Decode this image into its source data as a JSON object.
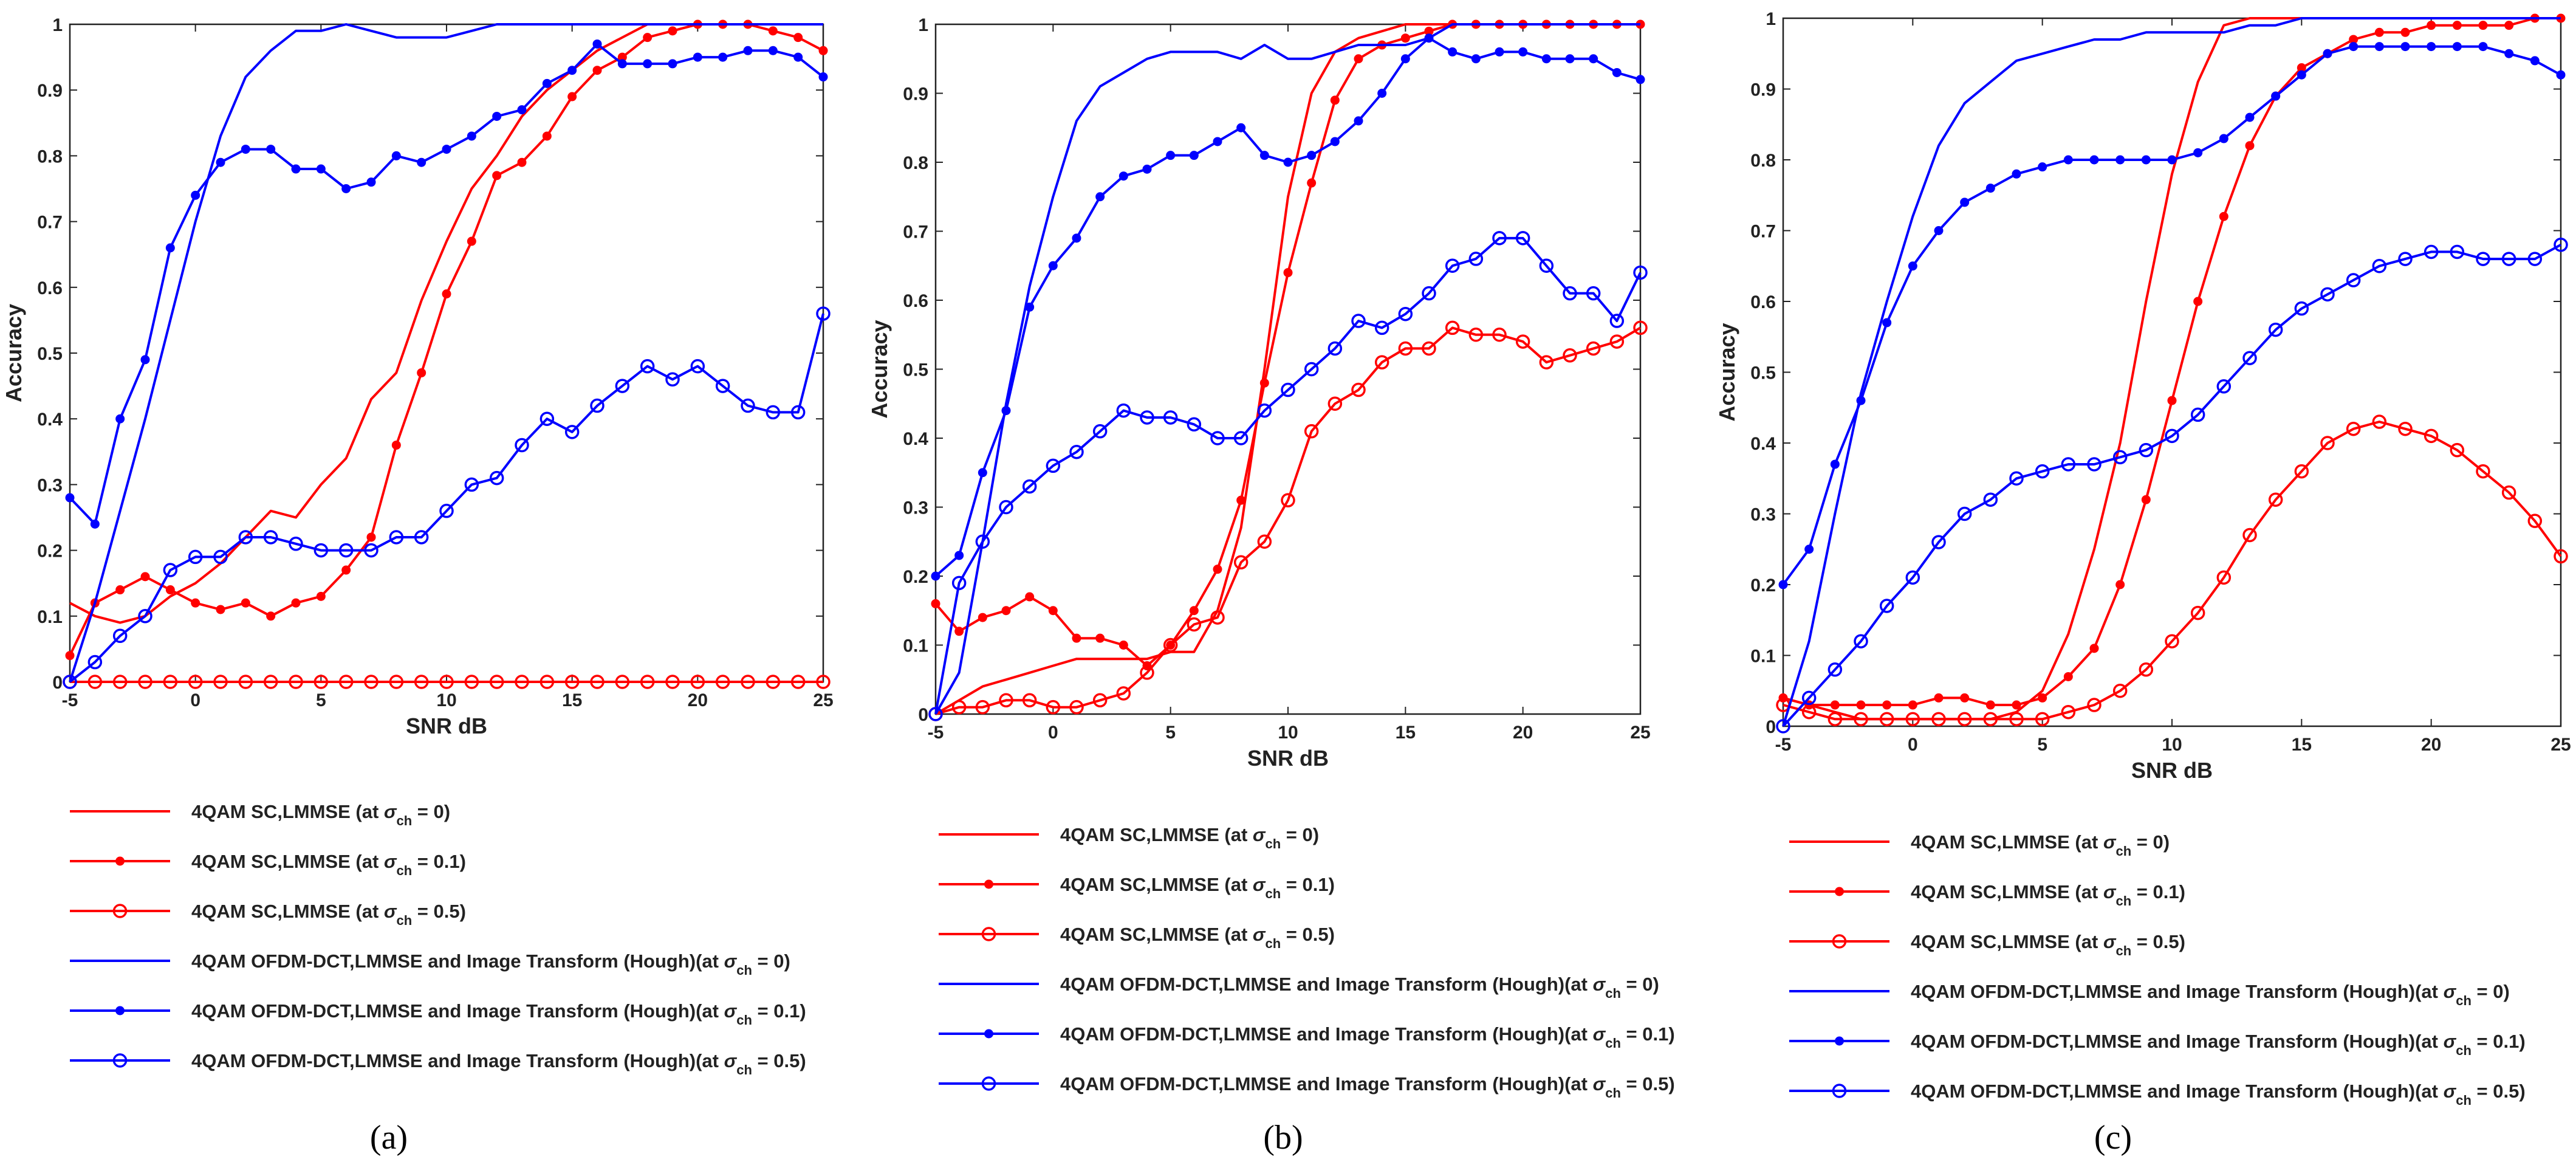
{
  "figure": {
    "captions": [
      "(a)",
      "(b)",
      "(c)"
    ],
    "colors": {
      "sc": "#ff0000",
      "ofdm": "#0000ff",
      "axis": "#222222"
    }
  },
  "chart_data": [
    {
      "type": "line",
      "panel": "a",
      "caption_letter": "a",
      "xlabel": "SNR dB",
      "ylabel": "Accuracy",
      "xlim": [
        -5,
        25
      ],
      "ylim": [
        0,
        1
      ],
      "xticks": [
        -5,
        0,
        5,
        10,
        15,
        20,
        25
      ],
      "yticks": [
        0,
        0.1,
        0.2,
        0.3,
        0.4,
        0.5,
        0.6,
        0.7,
        0.8,
        0.9,
        1
      ],
      "x": [
        -5,
        -4,
        -3,
        -2,
        -1,
        0,
        1,
        2,
        3,
        4,
        5,
        6,
        7,
        8,
        9,
        10,
        11,
        12,
        13,
        14,
        15,
        16,
        17,
        18,
        19,
        20,
        21,
        22,
        23,
        24,
        25
      ],
      "series": [
        {
          "name": "4QAM SC,LMMSE (at σch = 0)",
          "legend_prefix": "4QAM SC,LMMSE (at ",
          "legend_suffix": "= 0)",
          "color": "#ff0000",
          "marker": "none",
          "values": [
            0.12,
            0.1,
            0.09,
            0.1,
            0.13,
            0.15,
            0.18,
            0.22,
            0.26,
            0.25,
            0.3,
            0.34,
            0.43,
            0.47,
            0.58,
            0.67,
            0.75,
            0.8,
            0.86,
            0.9,
            0.93,
            0.96,
            0.98,
            1,
            1,
            1,
            1,
            1,
            1,
            1,
            1
          ]
        },
        {
          "name": "4QAM SC,LMMSE (at σch = 0.1)",
          "legend_prefix": "4QAM SC,LMMSE (at ",
          "legend_suffix": "= 0.1)",
          "color": "#ff0000",
          "marker": "dot",
          "values": [
            0.04,
            0.12,
            0.14,
            0.16,
            0.14,
            0.12,
            0.11,
            0.12,
            0.1,
            0.12,
            0.13,
            0.17,
            0.22,
            0.36,
            0.47,
            0.59,
            0.67,
            0.77,
            0.79,
            0.83,
            0.89,
            0.93,
            0.95,
            0.98,
            0.99,
            1,
            1,
            1,
            0.99,
            0.98,
            0.96
          ]
        },
        {
          "name": "4QAM SC,LMMSE (at σch = 0.5)",
          "legend_prefix": "4QAM SC,LMMSE (at ",
          "legend_suffix": "= 0.5)",
          "color": "#ff0000",
          "marker": "circle",
          "values": [
            0,
            0,
            0,
            0,
            0,
            0,
            0,
            0,
            0,
            0,
            0,
            0,
            0,
            0,
            0,
            0,
            0,
            0,
            0,
            0,
            0,
            0,
            0,
            0,
            0,
            0,
            0,
            0,
            0,
            0,
            0
          ]
        },
        {
          "name": "4QAM OFDM-DCT,LMMSE and Image Transform (Hough)(at σch = 0)",
          "legend_prefix": "4QAM OFDM-DCT,LMMSE and Image Transform (Hough)(at ",
          "legend_suffix": "= 0)",
          "color": "#0000ff",
          "marker": "none",
          "values": [
            0,
            0.12,
            0.26,
            0.4,
            0.55,
            0.7,
            0.83,
            0.92,
            0.96,
            0.99,
            0.99,
            1,
            0.99,
            0.98,
            0.98,
            0.98,
            0.99,
            1,
            1,
            1,
            1,
            1,
            1,
            1,
            1,
            1,
            1,
            1,
            1,
            1,
            1
          ]
        },
        {
          "name": "4QAM OFDM-DCT,LMMSE and Image Transform (Hough)(at σch = 0.1)",
          "legend_prefix": "4QAM OFDM-DCT,LMMSE and Image Transform (Hough)(at ",
          "legend_suffix": "= 0.1)",
          "color": "#0000ff",
          "marker": "dot",
          "values": [
            0.28,
            0.24,
            0.4,
            0.49,
            0.66,
            0.74,
            0.79,
            0.81,
            0.81,
            0.78,
            0.78,
            0.75,
            0.76,
            0.8,
            0.79,
            0.81,
            0.83,
            0.86,
            0.87,
            0.91,
            0.93,
            0.97,
            0.94,
            0.94,
            0.94,
            0.95,
            0.95,
            0.96,
            0.96,
            0.95,
            0.92
          ]
        },
        {
          "name": "4QAM OFDM-DCT,LMMSE and Image Transform (Hough)(at σch = 0.5)",
          "legend_prefix": "4QAM OFDM-DCT,LMMSE and Image Transform (Hough)(at ",
          "legend_suffix": "= 0.5)",
          "color": "#0000ff",
          "marker": "circle",
          "values": [
            0,
            0.03,
            0.07,
            0.1,
            0.17,
            0.19,
            0.19,
            0.22,
            0.22,
            0.21,
            0.2,
            0.2,
            0.2,
            0.22,
            0.22,
            0.26,
            0.3,
            0.31,
            0.36,
            0.4,
            0.38,
            0.42,
            0.45,
            0.48,
            0.46,
            0.48,
            0.45,
            0.42,
            0.41,
            0.41,
            0.56
          ]
        }
      ]
    },
    {
      "type": "line",
      "panel": "b",
      "caption_letter": "b",
      "xlabel": "SNR dB",
      "ylabel": "Accuracy",
      "xlim": [
        -5,
        25
      ],
      "ylim": [
        0,
        1
      ],
      "xticks": [
        -5,
        0,
        5,
        10,
        15,
        20,
        25
      ],
      "yticks": [
        0,
        0.1,
        0.2,
        0.3,
        0.4,
        0.5,
        0.6,
        0.7,
        0.8,
        0.9,
        1
      ],
      "x": [
        -5,
        -4,
        -3,
        -2,
        -1,
        0,
        1,
        2,
        3,
        4,
        5,
        6,
        7,
        8,
        9,
        10,
        11,
        12,
        13,
        14,
        15,
        16,
        17,
        18,
        19,
        20,
        21,
        22,
        23,
        24,
        25
      ],
      "series": [
        {
          "name": "4QAM SC,LMMSE (at σch = 0)",
          "legend_prefix": "4QAM SC,LMMSE (at ",
          "legend_suffix": "= 0)",
          "color": "#ff0000",
          "marker": "none",
          "values": [
            0,
            0.02,
            0.04,
            0.05,
            0.06,
            0.07,
            0.08,
            0.08,
            0.08,
            0.08,
            0.09,
            0.09,
            0.15,
            0.27,
            0.5,
            0.75,
            0.9,
            0.96,
            0.98,
            0.99,
            1,
            1,
            1,
            1,
            1,
            1,
            1,
            1,
            1,
            1,
            1
          ]
        },
        {
          "name": "4QAM SC,LMMSE (at σch = 0.1)",
          "legend_prefix": "4QAM SC,LMMSE (at ",
          "legend_suffix": "= 0.1)",
          "color": "#ff0000",
          "marker": "dot",
          "values": [
            0.16,
            0.12,
            0.14,
            0.15,
            0.17,
            0.15,
            0.11,
            0.11,
            0.1,
            0.07,
            0.1,
            0.15,
            0.21,
            0.31,
            0.48,
            0.64,
            0.77,
            0.89,
            0.95,
            0.97,
            0.98,
            0.99,
            1,
            1,
            1,
            1,
            1,
            1,
            1,
            1,
            1
          ]
        },
        {
          "name": "4QAM SC,LMMSE (at σch = 0.5)",
          "legend_prefix": "4QAM SC,LMMSE (at ",
          "legend_suffix": "= 0.5)",
          "color": "#ff0000",
          "marker": "circle",
          "values": [
            0,
            0.01,
            0.01,
            0.02,
            0.02,
            0.01,
            0.01,
            0.02,
            0.03,
            0.06,
            0.1,
            0.13,
            0.14,
            0.22,
            0.25,
            0.31,
            0.41,
            0.45,
            0.47,
            0.51,
            0.53,
            0.53,
            0.56,
            0.55,
            0.55,
            0.54,
            0.51,
            0.52,
            0.53,
            0.54,
            0.56
          ]
        },
        {
          "name": "4QAM OFDM-DCT,LMMSE and Image Transform (Hough)(at σch = 0)",
          "legend_prefix": "4QAM OFDM-DCT,LMMSE and Image Transform (Hough)(at ",
          "legend_suffix": "= 0)",
          "color": "#0000ff",
          "marker": "none",
          "values": [
            0,
            0.06,
            0.25,
            0.45,
            0.62,
            0.75,
            0.86,
            0.91,
            0.93,
            0.95,
            0.96,
            0.96,
            0.96,
            0.95,
            0.97,
            0.95,
            0.95,
            0.96,
            0.97,
            0.97,
            0.97,
            0.98,
            1,
            1,
            1,
            1,
            1,
            1,
            1,
            1,
            1
          ]
        },
        {
          "name": "4QAM OFDM-DCT,LMMSE and Image Transform (Hough)(at σch = 0.1)",
          "legend_prefix": "4QAM OFDM-DCT,LMMSE and Image Transform (Hough)(at ",
          "legend_suffix": "= 0.1)",
          "color": "#0000ff",
          "marker": "dot",
          "values": [
            0.2,
            0.23,
            0.35,
            0.44,
            0.59,
            0.65,
            0.69,
            0.75,
            0.78,
            0.79,
            0.81,
            0.81,
            0.83,
            0.85,
            0.81,
            0.8,
            0.81,
            0.83,
            0.86,
            0.9,
            0.95,
            0.98,
            0.96,
            0.95,
            0.96,
            0.96,
            0.95,
            0.95,
            0.95,
            0.93,
            0.92
          ]
        },
        {
          "name": "4QAM OFDM-DCT,LMMSE and Image Transform (Hough)(at σch = 0.5)",
          "legend_prefix": "4QAM OFDM-DCT,LMMSE and Image Transform (Hough)(at ",
          "legend_suffix": "= 0.5)",
          "color": "#0000ff",
          "marker": "circle",
          "values": [
            0,
            0.19,
            0.25,
            0.3,
            0.33,
            0.36,
            0.38,
            0.41,
            0.44,
            0.43,
            0.43,
            0.42,
            0.4,
            0.4,
            0.44,
            0.47,
            0.5,
            0.53,
            0.57,
            0.56,
            0.58,
            0.61,
            0.65,
            0.66,
            0.69,
            0.69,
            0.65,
            0.61,
            0.61,
            0.57,
            0.64
          ]
        }
      ]
    },
    {
      "type": "line",
      "panel": "c",
      "caption_letter": "c",
      "xlabel": "SNR dB",
      "ylabel": "Accuracy",
      "xlim": [
        -5,
        25
      ],
      "ylim": [
        0,
        1
      ],
      "xticks": [
        -5,
        0,
        5,
        10,
        15,
        20,
        25
      ],
      "yticks": [
        0,
        0.1,
        0.2,
        0.3,
        0.4,
        0.5,
        0.6,
        0.7,
        0.8,
        0.9,
        1
      ],
      "x": [
        -5,
        -4,
        -3,
        -2,
        -1,
        0,
        1,
        2,
        3,
        4,
        5,
        6,
        7,
        8,
        9,
        10,
        11,
        12,
        13,
        14,
        15,
        16,
        17,
        18,
        19,
        20,
        21,
        22,
        23,
        24,
        25
      ],
      "series": [
        {
          "name": "4QAM SC,LMMSE (at σch = 0)",
          "legend_prefix": "4QAM SC,LMMSE (at ",
          "legend_suffix": "= 0)",
          "color": "#ff0000",
          "marker": "none",
          "values": [
            0.04,
            0.03,
            0.02,
            0.01,
            0.01,
            0.01,
            0.01,
            0.01,
            0.01,
            0.02,
            0.05,
            0.13,
            0.25,
            0.4,
            0.6,
            0.78,
            0.91,
            0.99,
            1,
            1,
            1,
            1,
            1,
            1,
            1,
            1,
            1,
            1,
            1,
            1,
            1
          ]
        },
        {
          "name": "4QAM SC,LMMSE (at σch = 0.1)",
          "legend_prefix": "4QAM SC,LMMSE (at ",
          "legend_suffix": "= 0.1)",
          "color": "#ff0000",
          "marker": "dot",
          "values": [
            0.04,
            0.03,
            0.03,
            0.03,
            0.03,
            0.03,
            0.04,
            0.04,
            0.03,
            0.03,
            0.04,
            0.07,
            0.11,
            0.2,
            0.32,
            0.46,
            0.6,
            0.72,
            0.82,
            0.89,
            0.93,
            0.95,
            0.97,
            0.98,
            0.98,
            0.99,
            0.99,
            0.99,
            0.99,
            1,
            1
          ]
        },
        {
          "name": "4QAM SC,LMMSE (at σch = 0.5)",
          "legend_prefix": "4QAM SC,LMMSE (at ",
          "legend_suffix": "= 0.5)",
          "color": "#ff0000",
          "marker": "circle",
          "values": [
            0.03,
            0.02,
            0.01,
            0.01,
            0.01,
            0.01,
            0.01,
            0.01,
            0.01,
            0.01,
            0.01,
            0.02,
            0.03,
            0.05,
            0.08,
            0.12,
            0.16,
            0.21,
            0.27,
            0.32,
            0.36,
            0.4,
            0.42,
            0.43,
            0.42,
            0.41,
            0.39,
            0.36,
            0.33,
            0.29,
            0.24
          ]
        },
        {
          "name": "4QAM OFDM-DCT,LMMSE and Image Transform (Hough)(at σch = 0)",
          "legend_prefix": "4QAM OFDM-DCT,LMMSE and Image Transform (Hough)(at ",
          "legend_suffix": "= 0)",
          "color": "#0000ff",
          "marker": "none",
          "values": [
            0,
            0.12,
            0.3,
            0.47,
            0.6,
            0.72,
            0.82,
            0.88,
            0.91,
            0.94,
            0.95,
            0.96,
            0.97,
            0.97,
            0.98,
            0.98,
            0.98,
            0.98,
            0.99,
            0.99,
            1,
            1,
            1,
            1,
            1,
            1,
            1,
            1,
            1,
            1,
            1
          ]
        },
        {
          "name": "4QAM OFDM-DCT,LMMSE and Image Transform (Hough)(at σch = 0.1)",
          "legend_prefix": "4QAM OFDM-DCT,LMMSE and Image Transform (Hough)(at ",
          "legend_suffix": "= 0.1)",
          "color": "#0000ff",
          "marker": "dot",
          "values": [
            0.2,
            0.25,
            0.37,
            0.46,
            0.57,
            0.65,
            0.7,
            0.74,
            0.76,
            0.78,
            0.79,
            0.8,
            0.8,
            0.8,
            0.8,
            0.8,
            0.81,
            0.83,
            0.86,
            0.89,
            0.92,
            0.95,
            0.96,
            0.96,
            0.96,
            0.96,
            0.96,
            0.96,
            0.95,
            0.94,
            0.92
          ]
        },
        {
          "name": "4QAM OFDM-DCT,LMMSE and Image Transform (Hough)(at σch = 0.5)",
          "legend_prefix": "4QAM OFDM-DCT,LMMSE and Image Transform (Hough)(at ",
          "legend_suffix": "= 0.5)",
          "color": "#0000ff",
          "marker": "circle",
          "values": [
            0,
            0.04,
            0.08,
            0.12,
            0.17,
            0.21,
            0.26,
            0.3,
            0.32,
            0.35,
            0.36,
            0.37,
            0.37,
            0.38,
            0.39,
            0.41,
            0.44,
            0.48,
            0.52,
            0.56,
            0.59,
            0.61,
            0.63,
            0.65,
            0.66,
            0.67,
            0.67,
            0.66,
            0.66,
            0.66,
            0.68
          ]
        }
      ]
    }
  ]
}
